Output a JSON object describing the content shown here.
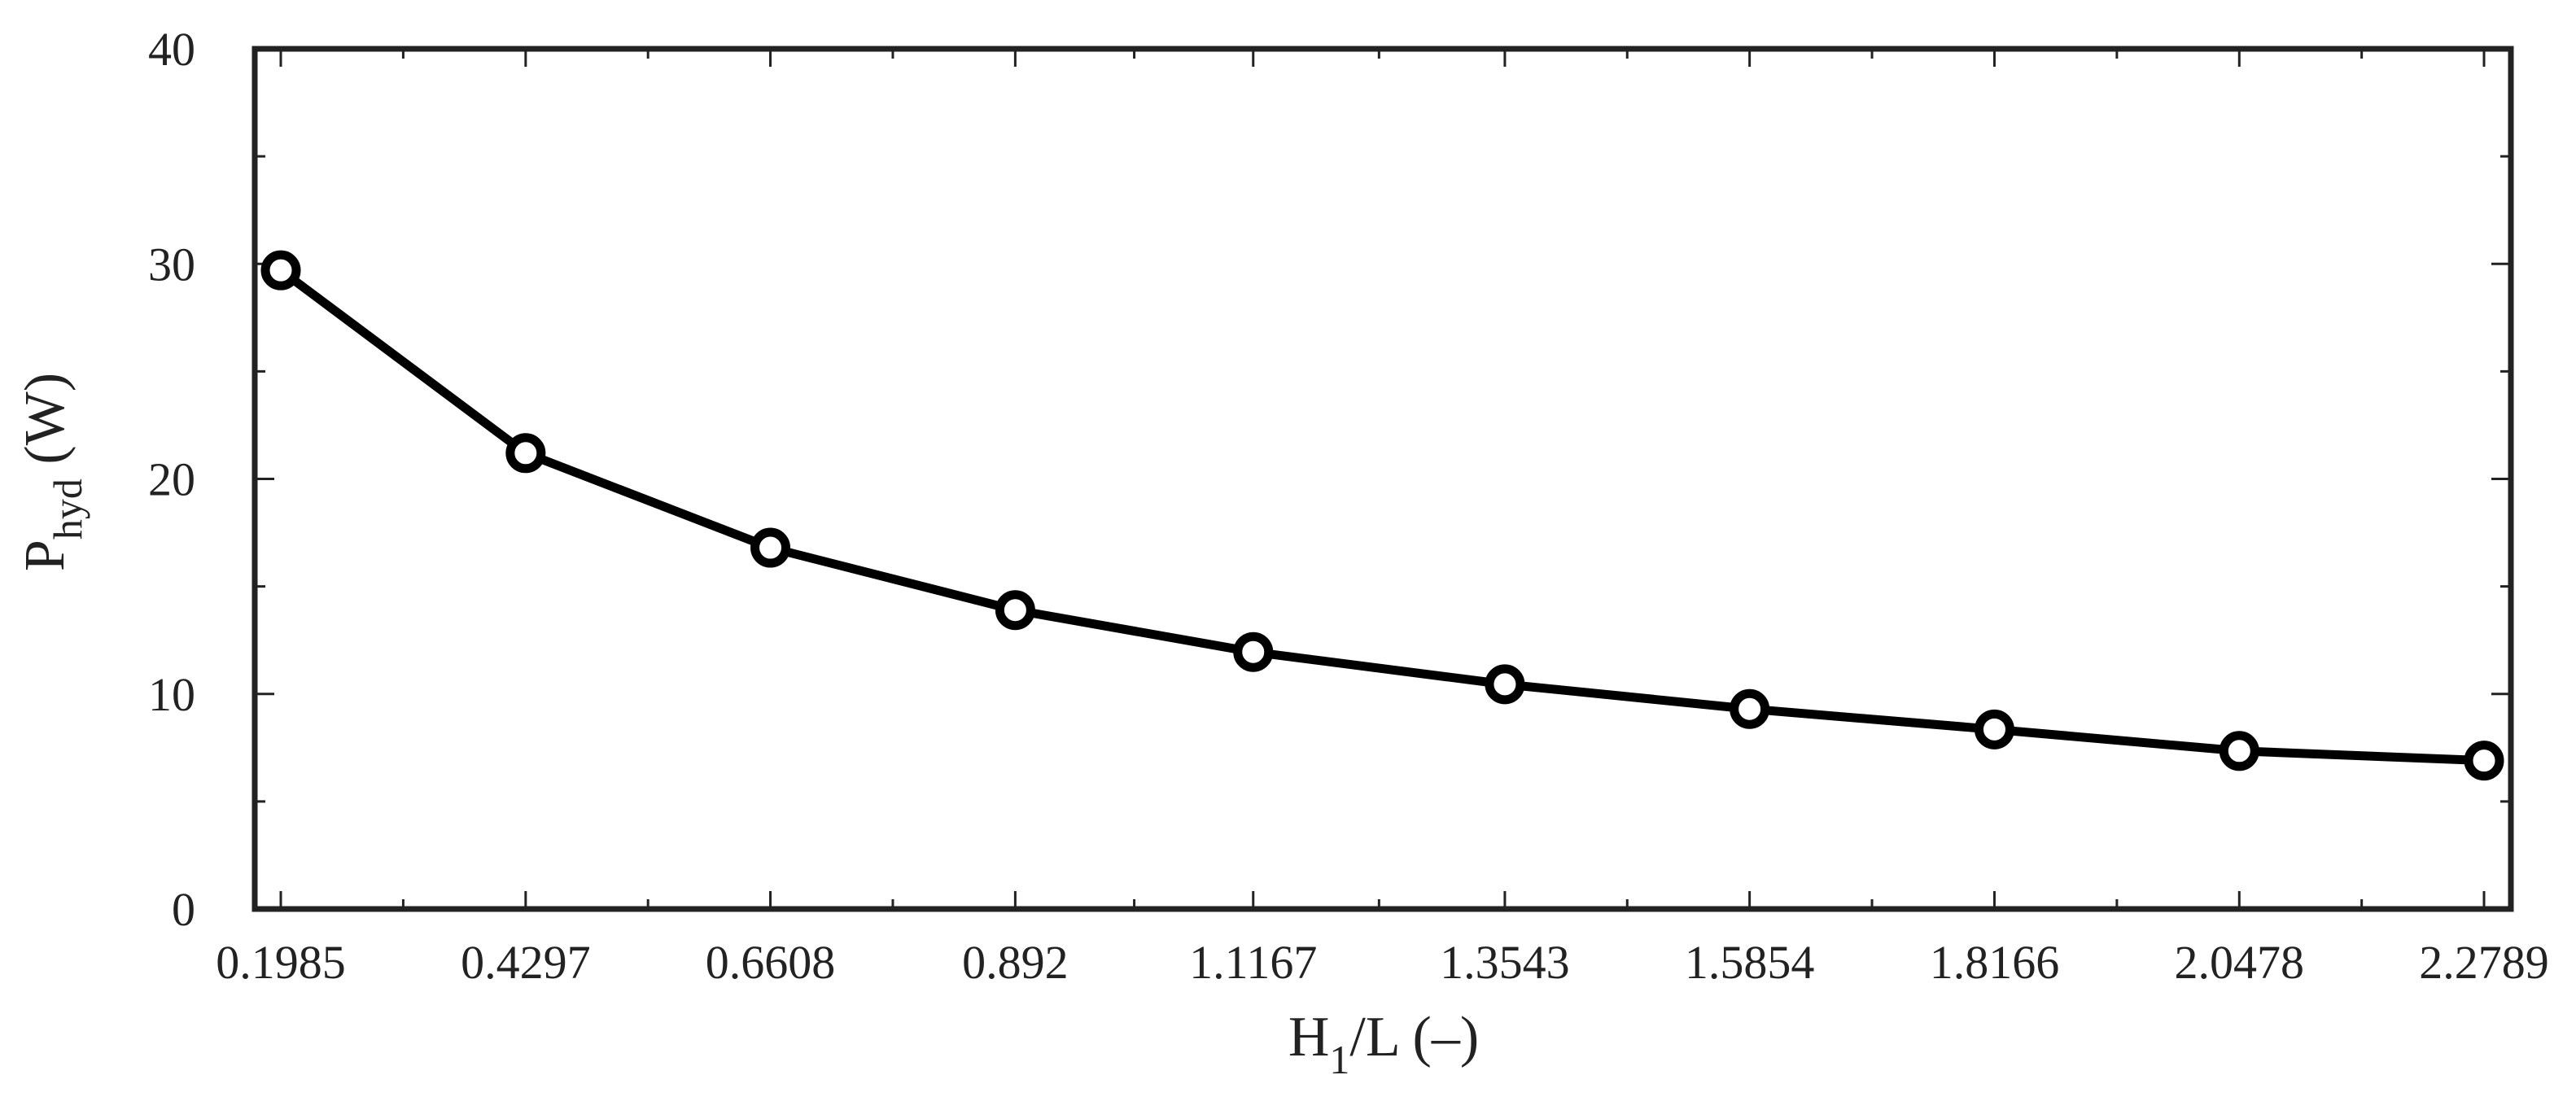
{
  "chart_data": {
    "type": "line",
    "title": "",
    "xlabel_main": "H",
    "xlabel_sub": "1",
    "xlabel_rest": "/L (–)",
    "ylabel_main": "P",
    "ylabel_sub": "hyd",
    "ylabel_rest": " (W)",
    "x_ticks": [
      "0.1985",
      "0.4297",
      "0.6608",
      "0.892",
      "1.1167",
      "1.3543",
      "1.5854",
      "1.8166",
      "2.0478",
      "2.2789"
    ],
    "y_ticks": [
      "0",
      "10",
      "20",
      "30",
      "40"
    ],
    "xlim": [
      0.1985,
      2.2789
    ],
    "ylim": [
      0,
      40
    ],
    "grid": false,
    "series": [
      {
        "x": [
          0.1985,
          0.4297,
          0.6608,
          0.892,
          1.1167,
          1.3543,
          1.5854,
          1.8166,
          2.0478,
          2.2789
        ],
        "y": [
          29.7,
          21.2,
          16.8,
          13.9,
          11.95,
          10.45,
          9.3,
          8.35,
          7.35,
          6.9
        ]
      }
    ],
    "colors": {
      "line": "#000000",
      "marker_fill": "#ffffff",
      "axes": "#222222"
    }
  }
}
